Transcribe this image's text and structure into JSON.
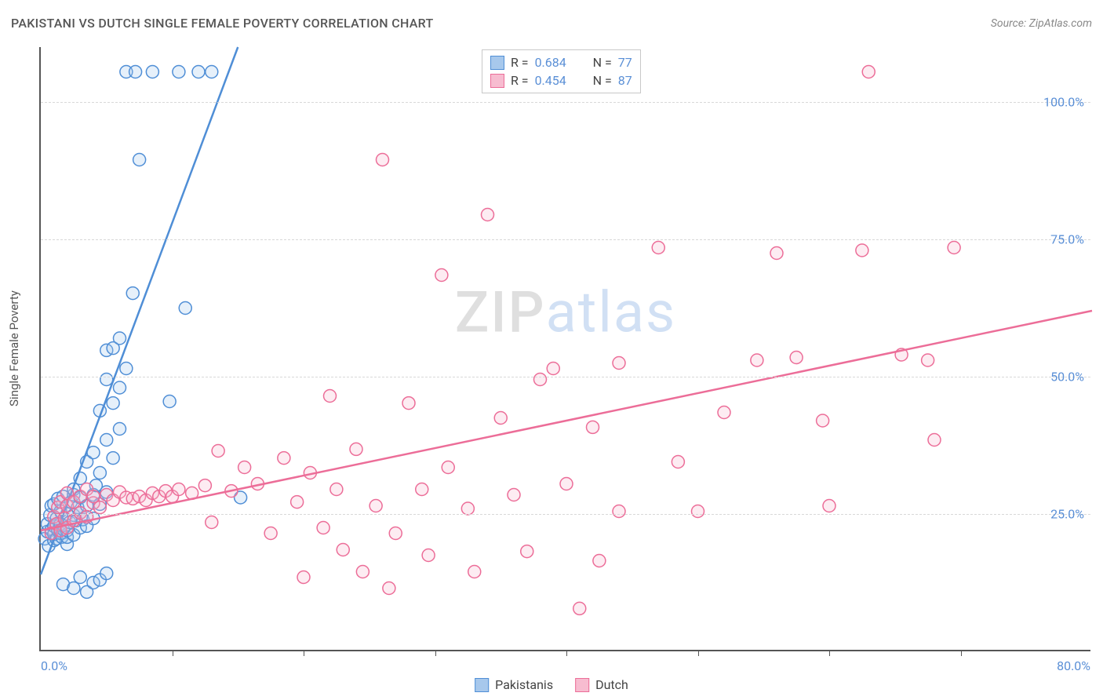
{
  "header": {
    "title": "PAKISTANI VS DUTCH SINGLE FEMALE POVERTY CORRELATION CHART",
    "source_prefix": "Source: ",
    "source_name": "ZipAtlas.com"
  },
  "chart": {
    "type": "scatter",
    "ylabel": "Single Female Poverty",
    "watermark": {
      "part1": "ZIP",
      "part2": "atlas"
    },
    "xlim": [
      0,
      80
    ],
    "ylim": [
      0,
      110
    ],
    "x_label_min": "0.0%",
    "x_label_max": "80.0%",
    "y_gridlines": [
      25,
      50,
      75,
      100
    ],
    "y_labels": [
      "25.0%",
      "50.0%",
      "75.0%",
      "100.0%"
    ],
    "x_ticks": [
      10,
      20,
      30,
      40,
      50,
      60,
      70
    ],
    "background_color": "#ffffff",
    "grid_color": "#d8d8d8",
    "axis_color": "#555555",
    "tick_label_color": "#5a8fd6",
    "marker_radius": 8,
    "marker_stroke_width": 1.5,
    "marker_fill_opacity": 0.28,
    "trendline_width": 2.5,
    "series": [
      {
        "name": "Pakistanis",
        "color_stroke": "#4f8ed6",
        "color_fill": "#a7c8ec",
        "R": "0.684",
        "N": "77",
        "trendline": {
          "x1": 0,
          "y1": 14,
          "x2": 15,
          "y2": 110
        },
        "points": [
          [
            0.3,
            20.5
          ],
          [
            0.5,
            21.8
          ],
          [
            0.5,
            23.2
          ],
          [
            0.6,
            19.2
          ],
          [
            0.7,
            24.8
          ],
          [
            0.8,
            22.1
          ],
          [
            0.8,
            26.5
          ],
          [
            1.0,
            20.2
          ],
          [
            1.0,
            21.3
          ],
          [
            1.0,
            22.8
          ],
          [
            1.0,
            26.8
          ],
          [
            1.2,
            20.5
          ],
          [
            1.2,
            24.2
          ],
          [
            1.3,
            22.0
          ],
          [
            1.3,
            27.8
          ],
          [
            1.5,
            21.5
          ],
          [
            1.5,
            23.2
          ],
          [
            1.5,
            25.5
          ],
          [
            1.6,
            20.8
          ],
          [
            1.7,
            22.2
          ],
          [
            1.7,
            28.2
          ],
          [
            2.0,
            19.5
          ],
          [
            2.0,
            20.8
          ],
          [
            2.0,
            22.0
          ],
          [
            2.0,
            25.0
          ],
          [
            2.2,
            23.5
          ],
          [
            2.3,
            27.2
          ],
          [
            2.5,
            21.2
          ],
          [
            2.5,
            24.8
          ],
          [
            2.5,
            28.5
          ],
          [
            2.5,
            29.5
          ],
          [
            2.7,
            23.8
          ],
          [
            2.8,
            26.2
          ],
          [
            3.0,
            22.5
          ],
          [
            3.0,
            25.2
          ],
          [
            3.0,
            28.0
          ],
          [
            3.0,
            31.5
          ],
          [
            3.2,
            24.0
          ],
          [
            3.5,
            22.8
          ],
          [
            3.5,
            26.5
          ],
          [
            3.5,
            34.5
          ],
          [
            4.0,
            24.2
          ],
          [
            4.0,
            28.5
          ],
          [
            4.0,
            36.2
          ],
          [
            4.2,
            30.2
          ],
          [
            4.5,
            26.8
          ],
          [
            4.5,
            32.5
          ],
          [
            4.5,
            43.8
          ],
          [
            5.0,
            29.0
          ],
          [
            5.0,
            38.5
          ],
          [
            5.0,
            49.5
          ],
          [
            5.0,
            54.8
          ],
          [
            5.5,
            35.2
          ],
          [
            5.5,
            45.2
          ],
          [
            5.5,
            55.2
          ],
          [
            6.0,
            40.5
          ],
          [
            6.0,
            48.0
          ],
          [
            6.0,
            57.0
          ],
          [
            6.5,
            51.5
          ],
          [
            6.5,
            105.5
          ],
          [
            7.0,
            65.2
          ],
          [
            7.2,
            105.5
          ],
          [
            7.5,
            89.5
          ],
          [
            8.5,
            105.5
          ],
          [
            9.8,
            45.5
          ],
          [
            10.5,
            105.5
          ],
          [
            11.0,
            62.5
          ],
          [
            12.0,
            105.5
          ],
          [
            13.0,
            105.5
          ],
          [
            1.7,
            12.2
          ],
          [
            2.5,
            11.5
          ],
          [
            3.0,
            13.5
          ],
          [
            3.5,
            10.8
          ],
          [
            4.0,
            12.5
          ],
          [
            4.5,
            13.0
          ],
          [
            5.0,
            14.2
          ],
          [
            15.2,
            28.0
          ]
        ]
      },
      {
        "name": "Dutch",
        "color_stroke": "#ec6d98",
        "color_fill": "#f7bcd0",
        "R": "0.454",
        "N": "87",
        "trendline": {
          "x1": 0,
          "y1": 22,
          "x2": 80,
          "y2": 62
        },
        "points": [
          [
            0.8,
            21.5
          ],
          [
            1.0,
            24.5
          ],
          [
            1.2,
            23.2
          ],
          [
            1.3,
            26.2
          ],
          [
            1.5,
            22.0
          ],
          [
            1.5,
            27.2
          ],
          [
            1.8,
            24.2
          ],
          [
            2.0,
            22.5
          ],
          [
            2.0,
            26.5
          ],
          [
            2.0,
            28.8
          ],
          [
            2.5,
            23.8
          ],
          [
            2.5,
            27.2
          ],
          [
            3.0,
            25.2
          ],
          [
            3.0,
            28.2
          ],
          [
            3.5,
            24.5
          ],
          [
            3.5,
            29.5
          ],
          [
            4.0,
            27.0
          ],
          [
            4.0,
            28.2
          ],
          [
            4.5,
            26.2
          ],
          [
            5.0,
            28.5
          ],
          [
            5.5,
            27.5
          ],
          [
            6.0,
            29.0
          ],
          [
            6.5,
            28.0
          ],
          [
            7.0,
            27.8
          ],
          [
            7.5,
            28.2
          ],
          [
            8.0,
            27.5
          ],
          [
            8.5,
            28.8
          ],
          [
            9.0,
            28.2
          ],
          [
            9.5,
            29.2
          ],
          [
            10.0,
            28.2
          ],
          [
            10.5,
            29.5
          ],
          [
            11.5,
            28.8
          ],
          [
            12.5,
            30.2
          ],
          [
            13.0,
            23.5
          ],
          [
            13.5,
            36.5
          ],
          [
            14.5,
            29.2
          ],
          [
            15.5,
            33.5
          ],
          [
            16.5,
            30.5
          ],
          [
            17.5,
            21.5
          ],
          [
            18.5,
            35.2
          ],
          [
            19.5,
            27.2
          ],
          [
            20.0,
            13.5
          ],
          [
            20.5,
            32.5
          ],
          [
            21.5,
            22.5
          ],
          [
            22.0,
            46.5
          ],
          [
            22.5,
            29.5
          ],
          [
            23.0,
            18.5
          ],
          [
            24.0,
            36.8
          ],
          [
            24.5,
            14.5
          ],
          [
            25.5,
            26.5
          ],
          [
            26.0,
            89.5
          ],
          [
            26.5,
            11.5
          ],
          [
            27.0,
            21.5
          ],
          [
            28.0,
            45.2
          ],
          [
            29.0,
            29.5
          ],
          [
            29.5,
            17.5
          ],
          [
            30.5,
            68.5
          ],
          [
            31.0,
            33.5
          ],
          [
            32.5,
            26.0
          ],
          [
            33.0,
            14.5
          ],
          [
            34.0,
            79.5
          ],
          [
            35.0,
            42.5
          ],
          [
            36.0,
            28.5
          ],
          [
            37.0,
            18.2
          ],
          [
            38.0,
            49.5
          ],
          [
            39.0,
            51.5
          ],
          [
            40.0,
            30.5
          ],
          [
            41.0,
            7.8
          ],
          [
            42.0,
            40.8
          ],
          [
            42.5,
            16.5
          ],
          [
            44.0,
            25.5
          ],
          [
            44.0,
            52.5
          ],
          [
            47.0,
            73.5
          ],
          [
            48.5,
            34.5
          ],
          [
            50.0,
            25.5
          ],
          [
            52.0,
            43.5
          ],
          [
            54.5,
            53.0
          ],
          [
            56.0,
            72.5
          ],
          [
            57.5,
            53.5
          ],
          [
            59.5,
            42.0
          ],
          [
            60.0,
            26.5
          ],
          [
            62.5,
            73.0
          ],
          [
            63.0,
            105.5
          ],
          [
            65.5,
            54.0
          ],
          [
            67.5,
            53.0
          ],
          [
            68.0,
            38.5
          ],
          [
            69.5,
            73.5
          ]
        ]
      }
    ]
  }
}
